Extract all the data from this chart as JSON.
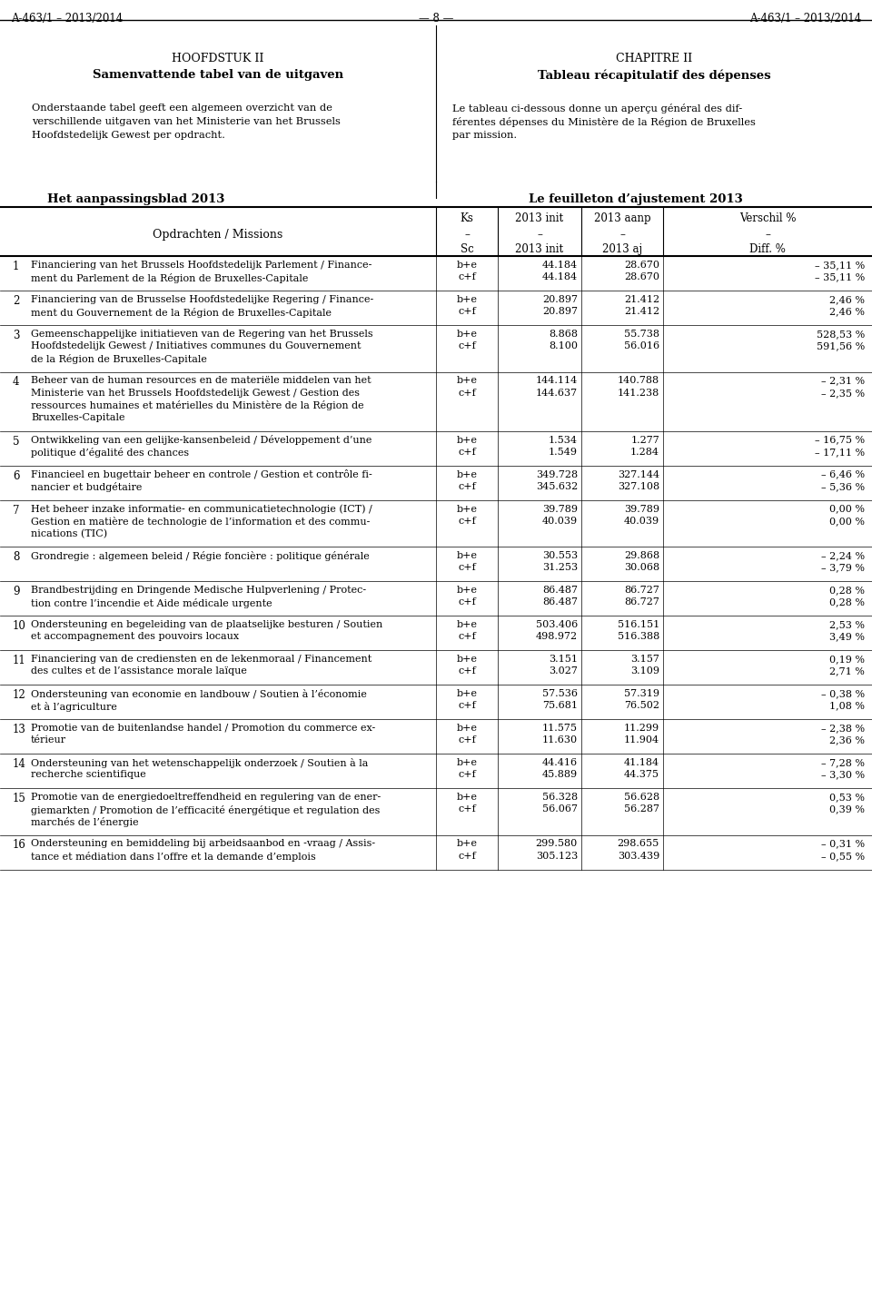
{
  "header_left": "A-463/1 – 2013/2014",
  "header_center": "— 8 —",
  "header_right": "A-463/1 – 2013/2014",
  "left_title1": "HOOFDSTUK II",
  "left_title2": "Samenvattende tabel van de uitgaven",
  "left_body1": "Onderstaande tabel geeft een algemeen overzicht van de",
  "left_body2": "verschillende uitgaven van het Ministerie van het Brussels",
  "left_body3": "Hoofdstedelijk Gewest per opdracht.",
  "right_title1": "CHAPITRE II",
  "right_title2": "Tableau récapitulatif des dépenses",
  "right_body1": "Le tableau ci-dessous donne un aperçu général des dif-",
  "right_body2": "férentes dépenses du Ministère de la Région de Bruxelles",
  "right_body3": "par mission.",
  "section_left": "Het aanpassingsblad 2013",
  "section_right": "Le feuilleton d’ajustement 2013",
  "col_h1": [
    "Ks",
    "2013 init",
    "2013 aanp",
    "Verschil %"
  ],
  "col_h2": [
    "–",
    "–",
    "–",
    "–"
  ],
  "col_h3": [
    "Sc",
    "2013 init",
    "2013 aj",
    "Diff. %"
  ],
  "col_label": "Opdrachten / Missions",
  "rows": [
    {
      "num": "1",
      "desc": [
        "Financiering van het Brussels Hoofdstedelijk Parlement / Finance-",
        "ment du Parlement de la Région de Bruxelles-Capitale"
      ],
      "lines": [
        {
          "ks": "b+e",
          "init": "44.184",
          "aanp": "28.670",
          "verschil": "– 35,11 %"
        },
        {
          "ks": "c+f",
          "init": "44.184",
          "aanp": "28.670",
          "verschil": "– 35,11 %"
        }
      ]
    },
    {
      "num": "2",
      "desc": [
        "Financiering van de Brusselse Hoofdstedelijke Regering / Finance-",
        "ment du Gouvernement de la Région de Bruxelles-Capitale"
      ],
      "lines": [
        {
          "ks": "b+e",
          "init": "20.897",
          "aanp": "21.412",
          "verschil": "2,46 %"
        },
        {
          "ks": "c+f",
          "init": "20.897",
          "aanp": "21.412",
          "verschil": "2,46 %"
        }
      ]
    },
    {
      "num": "3",
      "desc": [
        "Gemeenschappelijke initiatieven van de Regering van het Brussels",
        "Hoofdstedelijk Gewest / Initiatives communes du Gouvernement",
        "de la Région de Bruxelles-Capitale"
      ],
      "lines": [
        {
          "ks": "b+e",
          "init": "8.868",
          "aanp": "55.738",
          "verschil": "528,53 %"
        },
        {
          "ks": "c+f",
          "init": "8.100",
          "aanp": "56.016",
          "verschil": "591,56 %"
        }
      ]
    },
    {
      "num": "4",
      "desc": [
        "Beheer van de human resources en de materiële middelen van het",
        "Ministerie van het Brussels Hoofdstedelijk Gewest / Gestion des",
        "ressources humaines et matérielles du Ministère de la Région de",
        "Bruxelles-Capitale"
      ],
      "lines": [
        {
          "ks": "b+e",
          "init": "144.114",
          "aanp": "140.788",
          "verschil": "– 2,31 %"
        },
        {
          "ks": "c+f",
          "init": "144.637",
          "aanp": "141.238",
          "verschil": "– 2,35 %"
        }
      ]
    },
    {
      "num": "5",
      "desc": [
        "Ontwikkeling van een gelijke-kansenbeleid / Développement d’une",
        "politique d’égalité des chances"
      ],
      "lines": [
        {
          "ks": "b+e",
          "init": "1.534",
          "aanp": "1.277",
          "verschil": "– 16,75 %"
        },
        {
          "ks": "c+f",
          "init": "1.549",
          "aanp": "1.284",
          "verschil": "– 17,11 %"
        }
      ]
    },
    {
      "num": "6",
      "desc": [
        "Financieel en bugettair beheer en controle / Gestion et contrôle fi-",
        "nancier et budgétaire"
      ],
      "lines": [
        {
          "ks": "b+e",
          "init": "349.728",
          "aanp": "327.144",
          "verschil": "– 6,46 %"
        },
        {
          "ks": "c+f",
          "init": "345.632",
          "aanp": "327.108",
          "verschil": "– 5,36 %"
        }
      ]
    },
    {
      "num": "7",
      "desc": [
        "Het beheer inzake informatie- en communicatietechnologie (ICT) /",
        "Gestion en matière de technologie de l’information et des commu-",
        "nications (TIC)"
      ],
      "lines": [
        {
          "ks": "b+e",
          "init": "39.789",
          "aanp": "39.789",
          "verschil": "0,00 %"
        },
        {
          "ks": "c+f",
          "init": "40.039",
          "aanp": "40.039",
          "verschil": "0,00 %"
        }
      ]
    },
    {
      "num": "8",
      "desc": [
        "Grondregie : algemeen beleid / Régie foncière : politique générale"
      ],
      "lines": [
        {
          "ks": "b+e",
          "init": "30.553",
          "aanp": "29.868",
          "verschil": "– 2,24 %"
        },
        {
          "ks": "c+f",
          "init": "31.253",
          "aanp": "30.068",
          "verschil": "– 3,79 %"
        }
      ]
    },
    {
      "num": "9",
      "desc": [
        "Brandbestrijding en Dringende Medische Hulpverlening / Protec-",
        "tion contre l’incendie et Aide médicale urgente"
      ],
      "lines": [
        {
          "ks": "b+e",
          "init": "86.487",
          "aanp": "86.727",
          "verschil": "0,28 %"
        },
        {
          "ks": "c+f",
          "init": "86.487",
          "aanp": "86.727",
          "verschil": "0,28 %"
        }
      ]
    },
    {
      "num": "10",
      "desc": [
        "Ondersteuning en begeleiding van de plaatselijke besturen / Soutien",
        "et accompagnement des pouvoirs locaux"
      ],
      "lines": [
        {
          "ks": "b+e",
          "init": "503.406",
          "aanp": "516.151",
          "verschil": "2,53 %"
        },
        {
          "ks": "c+f",
          "init": "498.972",
          "aanp": "516.388",
          "verschil": "3,49 %"
        }
      ]
    },
    {
      "num": "11",
      "desc": [
        "Financiering van de crediensten en de lekenmoraal / Financement",
        "des cultes et de l’assistance morale laïque"
      ],
      "lines": [
        {
          "ks": "b+e",
          "init": "3.151",
          "aanp": "3.157",
          "verschil": "0,19 %"
        },
        {
          "ks": "c+f",
          "init": "3.027",
          "aanp": "3.109",
          "verschil": "2,71 %"
        }
      ]
    },
    {
      "num": "12",
      "desc": [
        "Ondersteuning van economie en landbouw / Soutien à l’économie",
        "et à l’agriculture"
      ],
      "lines": [
        {
          "ks": "b+e",
          "init": "57.536",
          "aanp": "57.319",
          "verschil": "– 0,38 %"
        },
        {
          "ks": "c+f",
          "init": "75.681",
          "aanp": "76.502",
          "verschil": "1,08 %"
        }
      ]
    },
    {
      "num": "13",
      "desc": [
        "Promotie van de buitenlandse handel / Promotion du commerce ex-",
        "térieur"
      ],
      "lines": [
        {
          "ks": "b+e",
          "init": "11.575",
          "aanp": "11.299",
          "verschil": "– 2,38 %"
        },
        {
          "ks": "c+f",
          "init": "11.630",
          "aanp": "11.904",
          "verschil": "2,36 %"
        }
      ]
    },
    {
      "num": "14",
      "desc": [
        "Ondersteuning van het wetenschappelijk onderzoek / Soutien à la",
        "recherche scientifique"
      ],
      "lines": [
        {
          "ks": "b+e",
          "init": "44.416",
          "aanp": "41.184",
          "verschil": "– 7,28 %"
        },
        {
          "ks": "c+f",
          "init": "45.889",
          "aanp": "44.375",
          "verschil": "– 3,30 %"
        }
      ]
    },
    {
      "num": "15",
      "desc": [
        "Promotie van de energiedoeltreffendheid en regulering van de ener-",
        "giemarkten / Promotion de l’efficacité énergétique et regulation des",
        "marchés de l’énergie"
      ],
      "lines": [
        {
          "ks": "b+e",
          "init": "56.328",
          "aanp": "56.628",
          "verschil": "0,53 %"
        },
        {
          "ks": "c+f",
          "init": "56.067",
          "aanp": "56.287",
          "verschil": "0,39 %"
        }
      ]
    },
    {
      "num": "16",
      "desc": [
        "Ondersteuning en bemiddeling bij arbeidsaanbod en -vraag / Assis-",
        "tance et médiation dans l’offre et la demande d’emplois"
      ],
      "lines": [
        {
          "ks": "b+e",
          "init": "299.580",
          "aanp": "298.655",
          "verschil": "– 0,31 %"
        },
        {
          "ks": "c+f",
          "init": "305.123",
          "aanp": "303.439",
          "verschil": "– 0,55 %"
        }
      ]
    }
  ]
}
